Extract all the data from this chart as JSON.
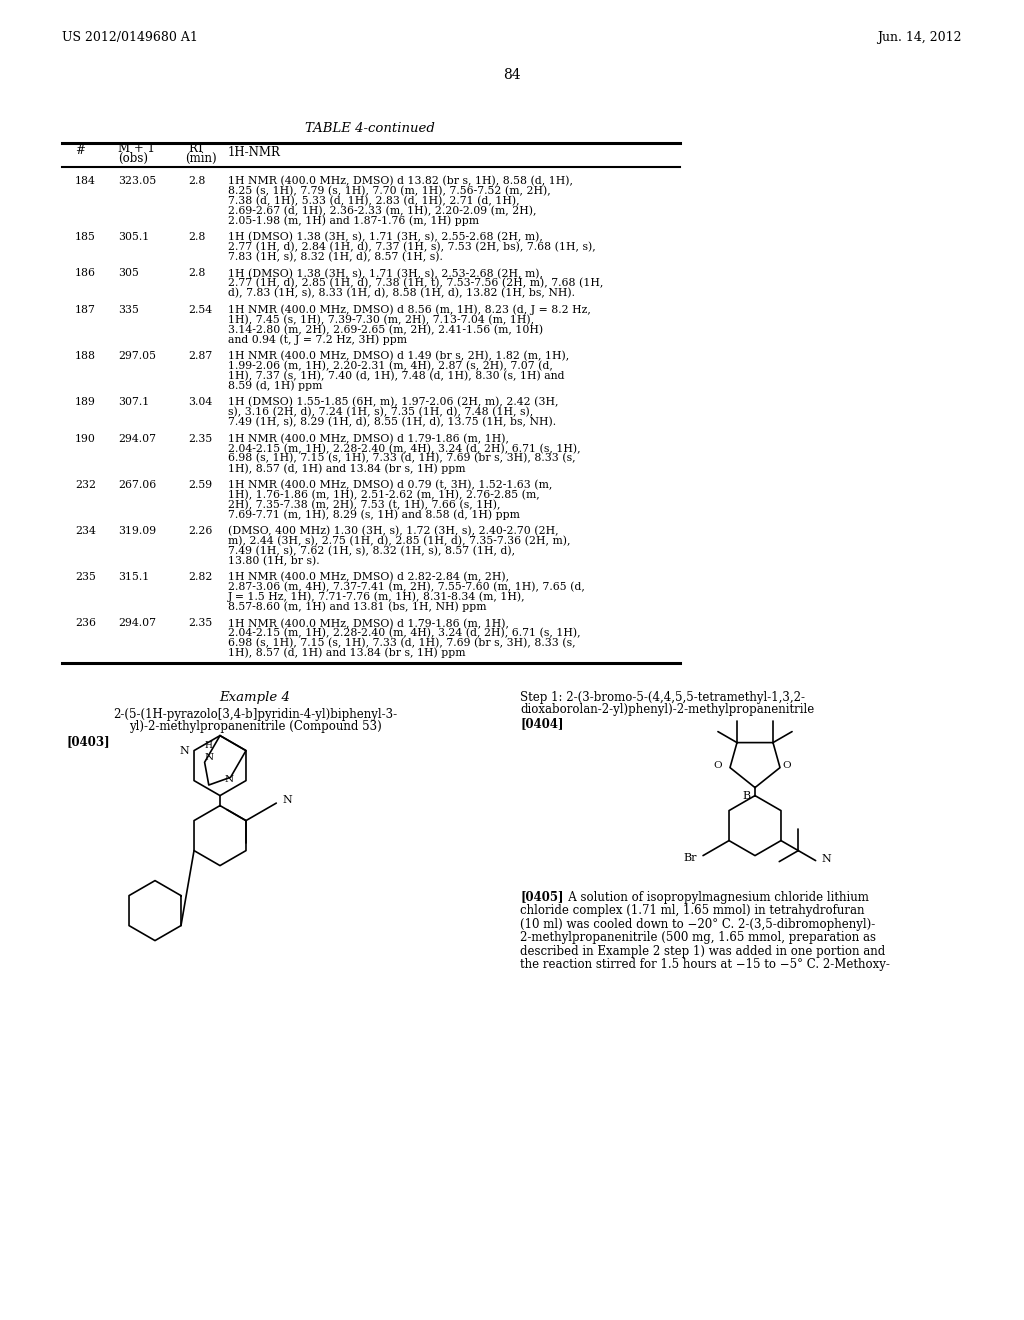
{
  "bg_color": "#ffffff",
  "header_left": "US 2012/0149680 A1",
  "header_right": "Jun. 14, 2012",
  "page_number": "84",
  "table_title": "TABLE 4-continued",
  "table_rows": [
    {
      "num": "184",
      "mz": "323.05",
      "rt": "2.8",
      "nmr": "1H NMR (400.0 MHz, DMSO) d 13.82 (br s, 1H), 8.58 (d, 1H),\n8.25 (s, 1H), 7.79 (s, 1H), 7.70 (m, 1H), 7.56-7.52 (m, 2H),\n7.38 (d, 1H), 5.33 (d, 1H), 2.83 (d, 1H), 2.71 (d, 1H),\n2.69-2.67 (d, 1H), 2.36-2.33 (m, 1H), 2.20-2.09 (m, 2H),\n2.05-1.98 (m, 1H) and 1.87-1.76 (m, 1H) ppm"
    },
    {
      "num": "185",
      "mz": "305.1",
      "rt": "2.8",
      "nmr": "1H (DMSO) 1.38 (3H, s), 1.71 (3H, s), 2.55-2.68 (2H, m),\n2.77 (1H, d), 2.84 (1H, d), 7.37 (1H, s), 7.53 (2H, bs), 7.68 (1H, s),\n7.83 (1H, s), 8.32 (1H, d), 8.57 (1H, s)."
    },
    {
      "num": "186",
      "mz": "305",
      "rt": "2.8",
      "nmr": "1H (DMSO) 1.38 (3H, s), 1.71 (3H, s), 2.53-2.68 (2H, m),\n2.77 (1H, d), 2.85 (1H, d), 7.38 (1H, t), 7.53-7.56 (2H, m), 7.68 (1H,\nd), 7.83 (1H, s), 8.33 (1H, d), 8.58 (1H, d), 13.82 (1H, bs, NH)."
    },
    {
      "num": "187",
      "mz": "335",
      "rt": "2.54",
      "nmr": "1H NMR (400.0 MHz, DMSO) d 8.56 (m, 1H), 8.23 (d, J = 8.2 Hz,\n1H), 7.45 (s, 1H), 7.39-7.30 (m, 2H), 7.13-7.04 (m, 1H),\n3.14-2.80 (m, 2H), 2.69-2.65 (m, 2H), 2.41-1.56 (m, 10H)\nand 0.94 (t, J = 7.2 Hz, 3H) ppm"
    },
    {
      "num": "188",
      "mz": "297.05",
      "rt": "2.87",
      "nmr": "1H NMR (400.0 MHz, DMSO) d 1.49 (br s, 2H), 1.82 (m, 1H),\n1.99-2.06 (m, 1H), 2.20-2.31 (m, 4H), 2.87 (s, 2H), 7.07 (d,\n1H), 7.37 (s, 1H), 7.40 (d, 1H), 7.48 (d, 1H), 8.30 (s, 1H) and\n8.59 (d, 1H) ppm"
    },
    {
      "num": "189",
      "mz": "307.1",
      "rt": "3.04",
      "nmr": "1H (DMSO) 1.55-1.85 (6H, m), 1.97-2.06 (2H, m), 2.42 (3H,\ns), 3.16 (2H, d), 7.24 (1H, s), 7.35 (1H, d), 7.48 (1H, s),\n7.49 (1H, s), 8.29 (1H, d), 8.55 (1H, d), 13.75 (1H, bs, NH)."
    },
    {
      "num": "190",
      "mz": "294.07",
      "rt": "2.35",
      "nmr": "1H NMR (400.0 MHz, DMSO) d 1.79-1.86 (m, 1H),\n2.04-2.15 (m, 1H), 2.28-2.40 (m, 4H), 3.24 (d, 2H), 6.71 (s, 1H),\n6.98 (s, 1H), 7.15 (s, 1H), 7.33 (d, 1H), 7.69 (br s, 3H), 8.33 (s,\n1H), 8.57 (d, 1H) and 13.84 (br s, 1H) ppm"
    },
    {
      "num": "232",
      "mz": "267.06",
      "rt": "2.59",
      "nmr": "1H NMR (400.0 MHz, DMSO) d 0.79 (t, 3H), 1.52-1.63 (m,\n1H), 1.76-1.86 (m, 1H), 2.51-2.62 (m, 1H), 2.76-2.85 (m,\n2H), 7.35-7.38 (m, 2H), 7.53 (t, 1H), 7.66 (s, 1H),\n7.69-7.71 (m, 1H), 8.29 (s, 1H) and 8.58 (d, 1H) ppm"
    },
    {
      "num": "234",
      "mz": "319.09",
      "rt": "2.26",
      "nmr": "(DMSO, 400 MHz) 1.30 (3H, s), 1.72 (3H, s), 2.40-2.70 (2H,\nm), 2.44 (3H, s), 2.75 (1H, d), 2.85 (1H, d), 7.35-7.36 (2H, m),\n7.49 (1H, s), 7.62 (1H, s), 8.32 (1H, s), 8.57 (1H, d),\n13.80 (1H, br s)."
    },
    {
      "num": "235",
      "mz": "315.1",
      "rt": "2.82",
      "nmr": "1H NMR (400.0 MHz, DMSO) d 2.82-2.84 (m, 2H),\n2.87-3.06 (m, 4H), 7.37-7.41 (m, 2H), 7.55-7.60 (m, 1H), 7.65 (d,\nJ = 1.5 Hz, 1H), 7.71-7.76 (m, 1H), 8.31-8.34 (m, 1H),\n8.57-8.60 (m, 1H) and 13.81 (bs, 1H, NH) ppm"
    },
    {
      "num": "236",
      "mz": "294.07",
      "rt": "2.35",
      "nmr": "1H NMR (400.0 MHz, DMSO) d 1.79-1.86 (m, 1H),\n2.04-2.15 (m, 1H), 2.28-2.40 (m, 4H), 3.24 (d, 2H), 6.71 (s, 1H),\n6.98 (s, 1H), 7.15 (s, 1H), 7.33 (d, 1H), 7.69 (br s, 3H), 8.33 (s,\n1H), 8.57 (d, 1H) and 13.84 (br s, 1H) ppm"
    }
  ],
  "example4_title": "Example 4",
  "example4_line1": "2-(5-(1H-pyrazolo[3,4-b]pyridin-4-yl)biphenyl-3-",
  "example4_line2": "yl)-2-methylpropanenitrile (Compound 53)",
  "example4_tag": "[0403]",
  "step1_line1": "Step 1: 2-(3-bromo-5-(4,4,5,5-tetramethyl-1,3,2-",
  "step1_line2": "dioxaborolan-2-yl)phenyl)-2-methylpropanenitrile",
  "step1_tag": "[0404]",
  "p405_tag": "[0405]",
  "p405_line1": "   A solution of isopropylmagnesium chloride lithium",
  "p405_line2": "chloride complex (1.71 ml, 1.65 mmol) in tetrahydrofuran",
  "p405_line3": "(10 ml) was cooled down to −20° C. 2-(3,5-dibromophenyl)-",
  "p405_line4": "2-methylpropanenitrile (500 mg, 1.65 mmol, preparation as",
  "p405_line5": "described in Example 2 step 1) was added in one portion and",
  "p405_line6": "the reaction stirred for 1.5 hours at −15 to −5° C. 2-Methoxy-"
}
